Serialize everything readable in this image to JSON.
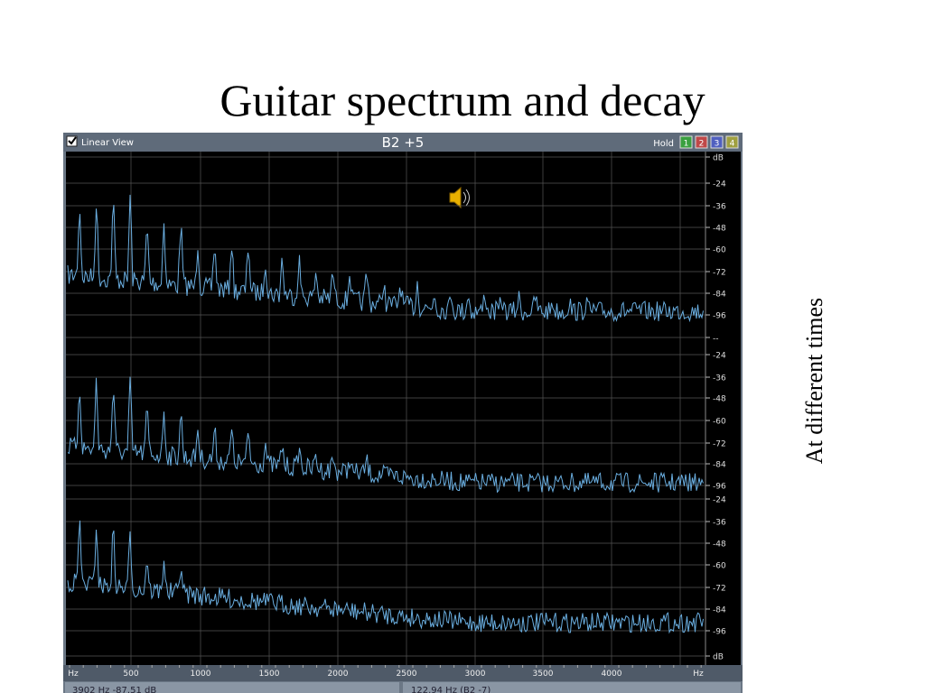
{
  "title": "Guitar spectrum and decay",
  "side_note": "At different times",
  "window": {
    "checkbox_label": "Linear View",
    "note": "B2 +5",
    "hold_label": "Hold",
    "hold_buttons": [
      "1",
      "2",
      "3",
      "4"
    ]
  },
  "db_scale": [
    [
      "dB",
      "-24",
      "-36",
      "-48",
      "-60",
      "-72",
      "-84",
      "-96",
      "--"
    ],
    [
      "-24",
      "-36",
      "-48",
      "-60",
      "-72",
      "-84",
      "-96"
    ],
    [
      "-24",
      "-36",
      "-48",
      "-60",
      "-72",
      "-84",
      "-96",
      "dB"
    ]
  ],
  "freq_axis": [
    "Hz",
    "500",
    "1000",
    "1500",
    "2000",
    "2500",
    "3000",
    "3500",
    "4000",
    "Hz"
  ],
  "status": [
    "3902 Hz  -87.51 dB",
    "122.94 Hz (B2 -7)"
  ]
}
